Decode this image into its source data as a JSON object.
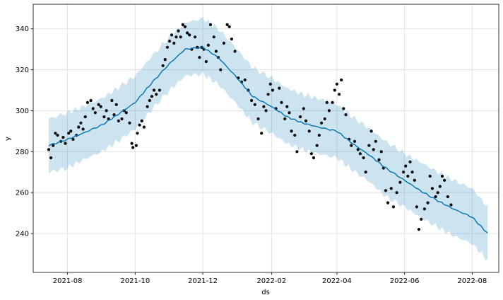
{
  "chart_data": {
    "type": "scatter",
    "title": "",
    "xlabel": "ds",
    "ylabel": "y",
    "grid": true,
    "x_range": [
      "2021-07-01",
      "2022-08-25"
    ],
    "ylim": [
      221,
      352
    ],
    "x_ticks": [
      "2021-08",
      "2021-10",
      "2021-12",
      "2022-02",
      "2022-04",
      "2022-06",
      "2022-08"
    ],
    "y_ticks": [
      240,
      260,
      280,
      300,
      320,
      340
    ],
    "colors": {
      "forecast": "#0072B2",
      "interval": "#0072B2",
      "points": "#000000",
      "grid": "#dddddd"
    },
    "series": [
      {
        "role": "forecast",
        "x": [
          "2021-07-15",
          "2021-08-01",
          "2021-08-15",
          "2021-09-01",
          "2021-09-15",
          "2021-10-01",
          "2021-10-15",
          "2021-11-01",
          "2021-11-15",
          "2021-12-01",
          "2021-12-15",
          "2022-01-01",
          "2022-01-15",
          "2022-02-01",
          "2022-02-15",
          "2022-03-01",
          "2022-03-15",
          "2022-04-01",
          "2022-04-15",
          "2022-05-01",
          "2022-05-15",
          "2022-06-01",
          "2022-06-15",
          "2022-07-01",
          "2022-07-15",
          "2022-08-01",
          "2022-08-15"
        ],
        "y": [
          283,
          286,
          289,
          293,
          298,
          304,
          313,
          323,
          330,
          331,
          326,
          316,
          307,
          302,
          297,
          294,
          292,
          290,
          284,
          278,
          272,
          266,
          261,
          256,
          252,
          248,
          240
        ]
      },
      {
        "role": "uncertainty-band",
        "x": [
          "2021-07-15",
          "2021-08-01",
          "2021-08-15",
          "2021-09-01",
          "2021-09-15",
          "2021-10-01",
          "2021-10-15",
          "2021-11-01",
          "2021-11-15",
          "2021-12-01",
          "2021-12-15",
          "2022-01-01",
          "2022-01-15",
          "2022-02-01",
          "2022-02-15",
          "2022-03-01",
          "2022-03-15",
          "2022-04-01",
          "2022-04-15",
          "2022-05-01",
          "2022-05-15",
          "2022-06-01",
          "2022-06-15",
          "2022-07-01",
          "2022-07-15",
          "2022-08-01",
          "2022-08-15"
        ],
        "upper": [
          296,
          299,
          302,
          306,
          311,
          317,
          326,
          336,
          343,
          345,
          340,
          330,
          321,
          316,
          311,
          308,
          306,
          303,
          297,
          291,
          285,
          279,
          275,
          270,
          266,
          262,
          253
        ],
        "lower": [
          270,
          272,
          276,
          280,
          285,
          291,
          300,
          310,
          317,
          318,
          313,
          303,
          294,
          289,
          284,
          281,
          279,
          277,
          271,
          265,
          258,
          253,
          248,
          243,
          239,
          235,
          227
        ]
      },
      {
        "role": "observed",
        "points": [
          [
            "2021-07-15",
            281
          ],
          [
            "2021-07-17",
            277
          ],
          [
            "2021-07-19",
            283
          ],
          [
            "2021-07-21",
            289
          ],
          [
            "2021-07-23",
            288
          ],
          [
            "2021-07-26",
            285
          ],
          [
            "2021-07-28",
            287
          ],
          [
            "2021-07-30",
            284
          ],
          [
            "2021-08-02",
            289
          ],
          [
            "2021-08-04",
            290
          ],
          [
            "2021-08-06",
            286
          ],
          [
            "2021-08-09",
            288
          ],
          [
            "2021-08-11",
            292
          ],
          [
            "2021-08-13",
            294
          ],
          [
            "2021-08-15",
            291
          ],
          [
            "2021-08-17",
            297
          ],
          [
            "2021-08-19",
            304
          ],
          [
            "2021-08-22",
            305
          ],
          [
            "2021-08-24",
            301
          ],
          [
            "2021-08-26",
            299
          ],
          [
            "2021-08-29",
            303
          ],
          [
            "2021-08-31",
            302
          ],
          [
            "2021-09-03",
            297
          ],
          [
            "2021-09-05",
            300
          ],
          [
            "2021-09-07",
            296
          ],
          [
            "2021-09-10",
            305
          ],
          [
            "2021-09-12",
            298
          ],
          [
            "2021-09-14",
            303
          ],
          [
            "2021-09-16",
            295
          ],
          [
            "2021-09-19",
            296
          ],
          [
            "2021-09-21",
            300
          ],
          [
            "2021-09-23",
            299
          ],
          [
            "2021-09-26",
            294
          ],
          [
            "2021-09-28",
            284
          ],
          [
            "2021-09-29",
            282
          ],
          [
            "2021-10-02",
            283
          ],
          [
            "2021-10-03",
            289
          ],
          [
            "2021-10-05",
            293
          ],
          [
            "2021-10-07",
            295
          ],
          [
            "2021-10-09",
            292
          ],
          [
            "2021-10-12",
            302
          ],
          [
            "2021-10-14",
            305
          ],
          [
            "2021-10-16",
            307
          ],
          [
            "2021-10-18",
            310
          ],
          [
            "2021-10-20",
            308
          ],
          [
            "2021-10-23",
            310
          ],
          [
            "2021-10-26",
            322
          ],
          [
            "2021-10-28",
            325
          ],
          [
            "2021-10-30",
            331
          ],
          [
            "2021-11-01",
            334
          ],
          [
            "2021-11-03",
            337
          ],
          [
            "2021-11-05",
            333
          ],
          [
            "2021-11-07",
            336
          ],
          [
            "2021-11-09",
            339
          ],
          [
            "2021-11-11",
            336
          ],
          [
            "2021-11-13",
            342
          ],
          [
            "2021-11-15",
            341
          ],
          [
            "2021-11-17",
            338
          ],
          [
            "2021-11-19",
            337
          ],
          [
            "2021-11-21",
            330
          ],
          [
            "2021-11-24",
            336
          ],
          [
            "2021-11-26",
            331
          ],
          [
            "2021-11-28",
            326
          ],
          [
            "2021-11-30",
            331
          ],
          [
            "2021-12-02",
            330
          ],
          [
            "2021-12-04",
            324
          ],
          [
            "2021-12-06",
            332
          ],
          [
            "2021-12-08",
            342
          ],
          [
            "2021-12-11",
            336
          ],
          [
            "2021-12-13",
            329
          ],
          [
            "2021-12-15",
            326
          ],
          [
            "2021-12-17",
            320
          ],
          [
            "2021-12-20",
            333
          ],
          [
            "2021-12-23",
            342
          ],
          [
            "2021-12-25",
            341
          ],
          [
            "2021-12-27",
            335
          ],
          [
            "2021-12-30",
            329
          ],
          [
            "2022-01-02",
            316
          ],
          [
            "2022-01-05",
            314
          ],
          [
            "2022-01-08",
            315
          ],
          [
            "2022-01-11",
            310
          ],
          [
            "2022-01-14",
            305
          ],
          [
            "2022-01-17",
            303
          ],
          [
            "2022-01-20",
            296
          ],
          [
            "2022-01-23",
            289
          ],
          [
            "2022-01-25",
            302
          ],
          [
            "2022-01-27",
            300
          ],
          [
            "2022-01-29",
            308
          ],
          [
            "2022-01-31",
            313
          ],
          [
            "2022-02-02",
            310
          ],
          [
            "2022-02-05",
            301
          ],
          [
            "2022-02-08",
            311
          ],
          [
            "2022-02-10",
            304
          ],
          [
            "2022-02-13",
            296
          ],
          [
            "2022-02-15",
            302
          ],
          [
            "2022-02-17",
            299
          ],
          [
            "2022-02-19",
            290
          ],
          [
            "2022-02-22",
            288
          ],
          [
            "2022-02-24",
            280
          ],
          [
            "2022-02-27",
            297
          ],
          [
            "2022-03-02",
            301
          ],
          [
            "2022-03-04",
            295
          ],
          [
            "2022-03-07",
            290
          ],
          [
            "2022-03-09",
            279
          ],
          [
            "2022-03-11",
            277
          ],
          [
            "2022-03-14",
            283
          ],
          [
            "2022-03-16",
            288
          ],
          [
            "2022-03-18",
            294
          ],
          [
            "2022-03-21",
            296
          ],
          [
            "2022-03-23",
            304
          ],
          [
            "2022-03-25",
            300
          ],
          [
            "2022-03-28",
            304
          ],
          [
            "2022-03-30",
            310
          ],
          [
            "2022-04-01",
            313
          ],
          [
            "2022-04-03",
            308
          ],
          [
            "2022-04-05",
            315
          ],
          [
            "2022-04-07",
            301
          ],
          [
            "2022-04-09",
            298
          ],
          [
            "2022-04-12",
            286
          ],
          [
            "2022-04-14",
            283
          ],
          [
            "2022-04-17",
            285
          ],
          [
            "2022-04-20",
            281
          ],
          [
            "2022-04-22",
            279
          ],
          [
            "2022-04-25",
            277
          ],
          [
            "2022-04-27",
            270
          ],
          [
            "2022-04-30",
            283
          ],
          [
            "2022-05-02",
            290
          ],
          [
            "2022-05-04",
            281
          ],
          [
            "2022-05-06",
            285
          ],
          [
            "2022-05-09",
            276
          ],
          [
            "2022-05-11",
            280
          ],
          [
            "2022-05-13",
            272
          ],
          [
            "2022-05-15",
            261
          ],
          [
            "2022-05-17",
            255
          ],
          [
            "2022-05-20",
            262
          ],
          [
            "2022-05-22",
            253
          ],
          [
            "2022-05-25",
            260
          ],
          [
            "2022-05-28",
            265
          ],
          [
            "2022-05-31",
            270
          ],
          [
            "2022-06-02",
            273
          ],
          [
            "2022-06-04",
            268
          ],
          [
            "2022-06-06",
            275
          ],
          [
            "2022-06-08",
            270
          ],
          [
            "2022-06-10",
            266
          ],
          [
            "2022-06-12",
            253
          ],
          [
            "2022-06-14",
            242
          ],
          [
            "2022-06-16",
            247
          ],
          [
            "2022-06-19",
            252
          ],
          [
            "2022-06-22",
            255
          ],
          [
            "2022-06-24",
            268
          ],
          [
            "2022-06-26",
            262
          ],
          [
            "2022-06-29",
            258
          ],
          [
            "2022-07-01",
            260
          ],
          [
            "2022-07-03",
            263
          ],
          [
            "2022-07-05",
            268
          ],
          [
            "2022-07-07",
            266
          ],
          [
            "2022-07-10",
            258
          ],
          [
            "2022-07-13",
            254
          ]
        ]
      }
    ]
  }
}
